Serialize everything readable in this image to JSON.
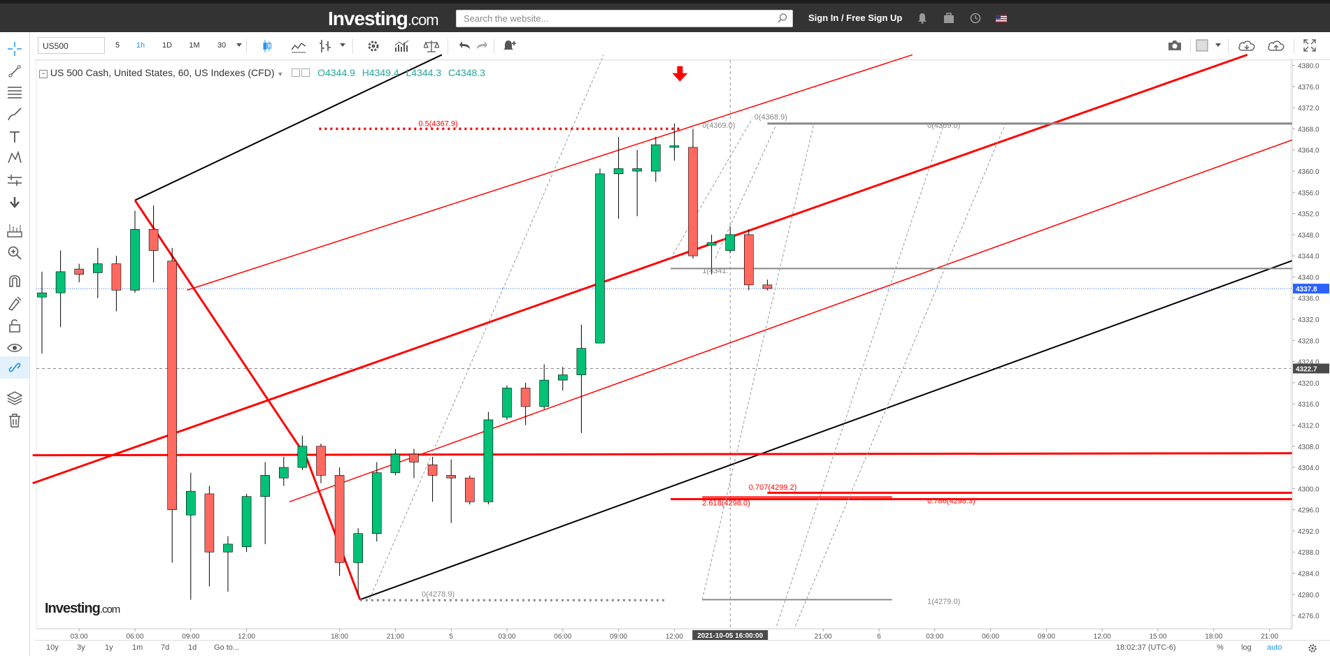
{
  "header": {
    "logo_main": "Investing",
    "logo_suffix": ".com",
    "search_placeholder": "Search the website...",
    "signin_label": "Sign In / Free Sign Up",
    "icons": [
      "bell-icon",
      "briefcase-icon",
      "clock-icon",
      "us-flag-icon"
    ]
  },
  "toolbar": {
    "symbol": "US500",
    "timeframes": [
      {
        "label": "5",
        "active": false
      },
      {
        "label": "1h",
        "active": true
      },
      {
        "label": "1D",
        "active": false
      },
      {
        "label": "1M",
        "active": false
      },
      {
        "label": "30",
        "active": false
      }
    ],
    "icons": [
      "candles-icon",
      "line-chart-icon",
      "compare-icon",
      "settings-icon",
      "indicators-icon",
      "balance-icon",
      "undo-icon",
      "redo-icon",
      "alert-icon"
    ],
    "right_icons": [
      "camera-icon",
      "layout-icon",
      "cloud-download-icon",
      "cloud-upload-icon",
      "fullscreen-icon"
    ]
  },
  "left_tools": [
    "crosshair-icon",
    "trendline-icon",
    "fibonacci-icon",
    "brush-icon",
    "text-icon",
    "pattern-icon",
    "measure-icon",
    "arrow-down-icon",
    "ruler-icon",
    "zoom-icon",
    "magnet-icon",
    "lock-drawing-icon",
    "unlock-icon",
    "eye-icon",
    "link-icon",
    "layers-icon",
    "trash-icon"
  ],
  "legend": {
    "title": "US 500 Cash, United States, 60, US Indexes (CFD)",
    "open": "O4344.9",
    "high": "H4349.4",
    "low": "L4344.3",
    "close": "C4348.3"
  },
  "watermark": {
    "main": "Investing",
    "suffix": ".com"
  },
  "chart_data": {
    "type": "candlestick",
    "y_range": [
      4273.5,
      4381
    ],
    "y_ticks": [
      4276,
      4280,
      4284,
      4288,
      4292,
      4296,
      4300,
      4304,
      4308,
      4312,
      4316,
      4320,
      4324,
      4328,
      4332,
      4336,
      4340,
      4344,
      4348,
      4352,
      4356,
      4360,
      4364,
      4368,
      4372,
      4376,
      4380
    ],
    "y_tick_labels": [
      "4276.0",
      "4280.0",
      "4284.0",
      "4288.0",
      "4292.0",
      "4296.0",
      "4300.0",
      "4304.0",
      "4308.0",
      "4312.0",
      "4316.0",
      "4320.0",
      "4324.0",
      "4328.0",
      "4332.0",
      "4336.0",
      "4340.0",
      "4344.0",
      "4348.0",
      "4352.0",
      "4356.0",
      "4360.0",
      "4364.0",
      "4368.0",
      "4372.0",
      "4376.0",
      "4380.0"
    ],
    "x_ticks": [
      {
        "label": "03:00",
        "bar": 2
      },
      {
        "label": "06:00",
        "bar": 5
      },
      {
        "label": "09:00",
        "bar": 8
      },
      {
        "label": "12:00",
        "bar": 11
      },
      {
        "label": "18:00",
        "bar": 16
      },
      {
        "label": "21:00",
        "bar": 19
      },
      {
        "label": "5",
        "bar": 22
      },
      {
        "label": "03:00",
        "bar": 25
      },
      {
        "label": "06:00",
        "bar": 28
      },
      {
        "label": "09:00",
        "bar": 31
      },
      {
        "label": "12:00",
        "bar": 34
      },
      {
        "label": "21:00",
        "bar": 42
      },
      {
        "label": "6",
        "bar": 45
      },
      {
        "label": "03:00",
        "bar": 48
      },
      {
        "label": "06:00",
        "bar": 51
      },
      {
        "label": "09:00",
        "bar": 54
      },
      {
        "label": "12:00",
        "bar": 57
      },
      {
        "label": "15:00",
        "bar": 60
      },
      {
        "label": "18:00",
        "bar": 63
      },
      {
        "label": "21:00",
        "bar": 66
      }
    ],
    "crosshair_time": "2021-10-05 16:00:00",
    "crosshair_bar": 37,
    "crosshair_price": "4322.7",
    "last_price": "4337.8",
    "candles": [
      {
        "o": 4336.2,
        "h": 4341.0,
        "l": 4325.5,
        "c": 4337.0
      },
      {
        "o": 4337.0,
        "h": 4345.0,
        "l": 4330.5,
        "c": 4341.0
      },
      {
        "o": 4341.5,
        "h": 4342.5,
        "l": 4339.0,
        "c": 4340.5
      },
      {
        "o": 4340.8,
        "h": 4345.5,
        "l": 4336.0,
        "c": 4342.5
      },
      {
        "o": 4342.5,
        "h": 4344.0,
        "l": 4333.5,
        "c": 4337.5
      },
      {
        "o": 4337.5,
        "h": 4352.5,
        "l": 4337.0,
        "c": 4349.0
      },
      {
        "o": 4349.0,
        "h": 4353.5,
        "l": 4339.0,
        "c": 4345.0
      },
      {
        "o": 4343.0,
        "h": 4345.5,
        "l": 4286.0,
        "c": 4296.0
      },
      {
        "o": 4295.0,
        "h": 4303.0,
        "l": 4279.0,
        "c": 4299.5
      },
      {
        "o": 4299.0,
        "h": 4300.5,
        "l": 4281.5,
        "c": 4288.0
      },
      {
        "o": 4288.0,
        "h": 4291.0,
        "l": 4280.5,
        "c": 4289.5
      },
      {
        "o": 4289.0,
        "h": 4299.0,
        "l": 4288.0,
        "c": 4298.5
      },
      {
        "o": 4298.5,
        "h": 4305.0,
        "l": 4289.5,
        "c": 4302.5
      },
      {
        "o": 4302.0,
        "h": 4306.0,
        "l": 4300.5,
        "c": 4304.0
      },
      {
        "o": 4304.0,
        "h": 4310.0,
        "l": 4303.5,
        "c": 4308.0
      },
      {
        "o": 4308.0,
        "h": 4308.5,
        "l": 4301.0,
        "c": 4302.5
      },
      {
        "o": 4302.5,
        "h": 4304.0,
        "l": 4283.5,
        "c": 4286.0
      },
      {
        "o": 4286.0,
        "h": 4292.5,
        "l": 4280.0,
        "c": 4291.5
      },
      {
        "o": 4291.5,
        "h": 4305.0,
        "l": 4290.0,
        "c": 4303.0
      },
      {
        "o": 4303.0,
        "h": 4307.5,
        "l": 4302.5,
        "c": 4306.5
      },
      {
        "o": 4306.5,
        "h": 4307.5,
        "l": 4302.0,
        "c": 4305.0
      },
      {
        "o": 4304.5,
        "h": 4306.0,
        "l": 4297.5,
        "c": 4302.5
      },
      {
        "o": 4302.5,
        "h": 4305.5,
        "l": 4293.5,
        "c": 4302.0
      },
      {
        "o": 4302.0,
        "h": 4302.5,
        "l": 4297.0,
        "c": 4297.5
      },
      {
        "o": 4297.5,
        "h": 4314.5,
        "l": 4297.0,
        "c": 4313.0
      },
      {
        "o": 4313.5,
        "h": 4319.5,
        "l": 4313.0,
        "c": 4319.0
      },
      {
        "o": 4319.0,
        "h": 4320.0,
        "l": 4312.0,
        "c": 4315.5
      },
      {
        "o": 4315.5,
        "h": 4323.5,
        "l": 4315.0,
        "c": 4320.5
      },
      {
        "o": 4320.5,
        "h": 4323.0,
        "l": 4318.5,
        "c": 4321.5
      },
      {
        "o": 4321.5,
        "h": 4331.0,
        "l": 4310.5,
        "c": 4326.5
      },
      {
        "o": 4327.5,
        "h": 4360.5,
        "l": 4327.5,
        "c": 4359.5
      },
      {
        "o": 4359.5,
        "h": 4366.5,
        "l": 4351.0,
        "c": 4360.5
      },
      {
        "o": 4360.0,
        "h": 4364.0,
        "l": 4351.5,
        "c": 4360.5
      },
      {
        "o": 4360.0,
        "h": 4366.5,
        "l": 4358.0,
        "c": 4365.0
      },
      {
        "o": 4364.5,
        "h": 4369.0,
        "l": 4362.0,
        "c": 4364.8
      },
      {
        "o": 4364.5,
        "h": 4368.0,
        "l": 4343.5,
        "c": 4344.0
      },
      {
        "o": 4346.0,
        "h": 4348.0,
        "l": 4340.5,
        "c": 4346.5
      },
      {
        "o": 4345.0,
        "h": 4349.5,
        "l": 4344.5,
        "c": 4348.0
      },
      {
        "o": 4348.0,
        "h": 4349.0,
        "l": 4337.5,
        "c": 4338.5
      },
      {
        "o": 4338.5,
        "h": 4339.5,
        "l": 4337.5,
        "c": 4337.8
      }
    ],
    "annotations": [
      {
        "text": "0.5(4367.9)",
        "color": "#ff0000"
      },
      {
        "text": "0(4369.0)",
        "color": "#888888"
      },
      {
        "text": "0(4368.9)",
        "color": "#888888"
      },
      {
        "text": "0(4369.0)",
        "color": "#888888"
      },
      {
        "text": "1(4341.",
        "color": "#888888"
      },
      {
        "text": "0.707(4299.2)",
        "color": "#ff0000"
      },
      {
        "text": "2.618(4298.0)",
        "color": "#ff0000"
      },
      {
        "text": "0.786(4298.3)",
        "color": "#ff0000"
      },
      {
        "text": "0(4278.9)",
        "color": "#888888"
      },
      {
        "text": "1(4279.0)",
        "color": "#888888"
      }
    ],
    "colors": {
      "up": "#00c176",
      "down": "#ff6960",
      "outline": "#000000",
      "red_line": "#ff0000",
      "black_line": "#000000"
    }
  },
  "bottom": {
    "ranges": [
      "10y",
      "3y",
      "1y",
      "1m",
      "7d",
      "1d"
    ],
    "goto_label": "Go to...",
    "clock": "18:02:37 (UTC-6)",
    "percent": "%",
    "log": "log",
    "auto": "auto"
  }
}
